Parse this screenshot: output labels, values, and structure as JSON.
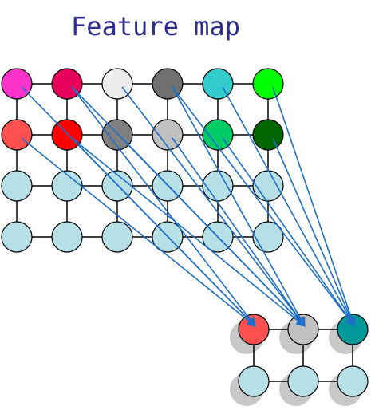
{
  "title": "Feature map",
  "feature_map": {
    "rows": 4,
    "cols": 6,
    "node_colors": [
      [
        "#ff33cc",
        "#e6005c",
        "#ececec",
        "#707070",
        "#33cccc",
        "#00ff00"
      ],
      [
        "#ff5050",
        "#ff0000",
        "#808080",
        "#c0c0c0",
        "#00cc66",
        "#006600"
      ],
      [
        "#b7e0e6",
        "#b7e0e6",
        "#b7e0e6",
        "#b7e0e6",
        "#b7e0e6",
        "#b7e0e6"
      ],
      [
        "#b7e0e6",
        "#b7e0e6",
        "#b7e0e6",
        "#b7e0e6",
        "#b7e0e6",
        "#b7e0e6"
      ]
    ]
  },
  "output_map": {
    "rows": 2,
    "cols": 3,
    "node_colors": [
      [
        "#ff5050",
        "#c0c0c0",
        "#009999"
      ],
      [
        "#b7e0e6",
        "#b7e0e6",
        "#b7e0e6"
      ]
    ]
  },
  "arrows": [
    {
      "from": [
        0,
        0
      ],
      "to": [
        0,
        0
      ]
    },
    {
      "from": [
        0,
        1
      ],
      "to": [
        0,
        0
      ]
    },
    {
      "from": [
        1,
        0
      ],
      "to": [
        0,
        0
      ]
    },
    {
      "from": [
        1,
        1
      ],
      "to": [
        0,
        0
      ]
    },
    {
      "from": [
        0,
        1
      ],
      "to": [
        0,
        1
      ]
    },
    {
      "from": [
        0,
        2
      ],
      "to": [
        0,
        1
      ]
    },
    {
      "from": [
        1,
        1
      ],
      "to": [
        0,
        1
      ]
    },
    {
      "from": [
        1,
        2
      ],
      "to": [
        0,
        1
      ]
    },
    {
      "from": [
        0,
        3
      ],
      "to": [
        0,
        1
      ]
    },
    {
      "from": [
        1,
        3
      ],
      "to": [
        0,
        1
      ]
    },
    {
      "from": [
        0,
        3
      ],
      "to": [
        0,
        2
      ]
    },
    {
      "from": [
        0,
        4
      ],
      "to": [
        0,
        2
      ]
    },
    {
      "from": [
        0,
        5
      ],
      "to": [
        0,
        2
      ]
    },
    {
      "from": [
        1,
        4
      ],
      "to": [
        0,
        2
      ]
    },
    {
      "from": [
        1,
        5
      ],
      "to": [
        0,
        2
      ]
    }
  ],
  "colors": {
    "edge": "#000000",
    "arrow": "#1f6fc9",
    "node_stroke": "#000000",
    "shadow": "#9a9a9a"
  }
}
